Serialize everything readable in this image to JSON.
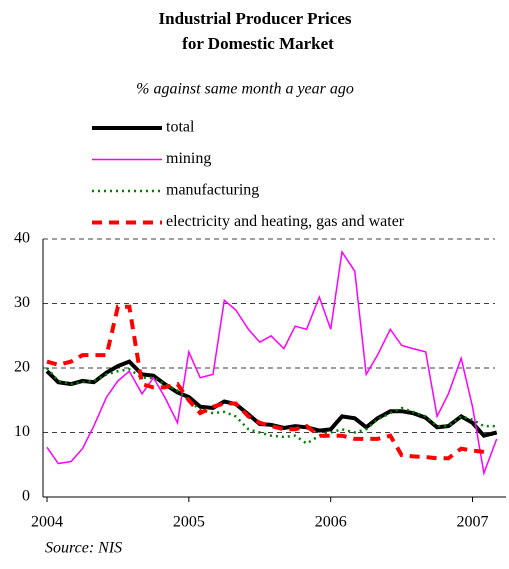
{
  "chart_data": {
    "type": "line",
    "title": [
      "Industrial Producer Prices",
      "for Domestic Market"
    ],
    "subtitle": "% against same month a year ago",
    "source": "Source: NIS",
    "x": [
      2004,
      2004.08,
      2004.17,
      2004.25,
      2004.33,
      2004.42,
      2004.5,
      2004.58,
      2004.67,
      2004.75,
      2004.83,
      2004.92,
      2005,
      2005.08,
      2005.17,
      2005.25,
      2005.33,
      2005.42,
      2005.5,
      2005.58,
      2005.67,
      2005.75,
      2005.83,
      2005.92,
      2006,
      2006.08,
      2006.17,
      2006.25,
      2006.33,
      2006.42,
      2006.5,
      2006.58,
      2006.67,
      2006.75,
      2006.83,
      2006.92,
      2007,
      2007.08,
      2007.17
    ],
    "xlim": [
      2004,
      2007.25
    ],
    "xticks": [
      2004,
      2005,
      2006,
      2007
    ],
    "ylim": [
      0,
      60
    ],
    "yticks": [
      0,
      10,
      20,
      30,
      40
    ],
    "grid": true,
    "series": [
      {
        "name": "total",
        "color": "#000000",
        "style": "solid",
        "values": [
          19.5,
          17.8,
          17.5,
          18,
          17.8,
          19.3,
          20.3,
          21,
          19,
          18.8,
          17.5,
          16.2,
          15.5,
          14,
          13.8,
          14.8,
          14.4,
          12.8,
          11.3,
          11.2,
          10.7,
          11,
          10.8,
          10.3,
          10.5,
          12.5,
          12.2,
          10.8,
          12.2,
          13.3,
          13.3,
          13,
          12.3,
          10.8,
          11,
          12.5,
          11.5,
          9.5,
          10
        ]
      },
      {
        "name": "mining",
        "color": "#ff00ff",
        "style": "thin",
        "values": [
          7.7,
          5.2,
          5.5,
          7.5,
          11,
          15.5,
          18,
          19.5,
          16,
          18.5,
          15.5,
          11.5,
          22.5,
          18.5,
          19,
          30.5,
          29,
          26,
          24,
          25,
          23,
          26.5,
          26,
          31,
          26,
          38,
          35,
          19,
          22,
          26,
          23.5,
          23,
          22.5,
          12.5,
          16,
          21.5,
          14,
          3.7,
          9
        ]
      },
      {
        "name": "manufacturing",
        "color": "#008000",
        "style": "dotted",
        "values": [
          20,
          18,
          17.5,
          17.8,
          18,
          19,
          19.5,
          19.8,
          18.5,
          18.5,
          17.5,
          16.5,
          15,
          13.5,
          13,
          13.2,
          12.5,
          10.5,
          10,
          9.5,
          9.3,
          9.5,
          8.3,
          9.5,
          10,
          10.5,
          10,
          10.5,
          12,
          13,
          13.8,
          13.2,
          12.5,
          11,
          11,
          12.5,
          12,
          11,
          11
        ]
      },
      {
        "name": "electricity and heating, gas and water",
        "color": "#ff0000",
        "style": "dashed",
        "values": [
          21,
          20.5,
          21,
          22,
          22,
          22,
          29.5,
          29.5,
          17.5,
          17,
          17,
          17.5,
          15,
          13,
          14,
          14.5,
          14.5,
          12.5,
          11.5,
          11,
          10.5,
          10.5,
          11,
          9.5,
          9.5,
          9.5,
          9,
          9,
          9,
          9.5,
          6.5,
          6.3,
          6.2,
          6,
          6,
          7.5,
          7.2,
          7,
          null
        ]
      }
    ]
  }
}
